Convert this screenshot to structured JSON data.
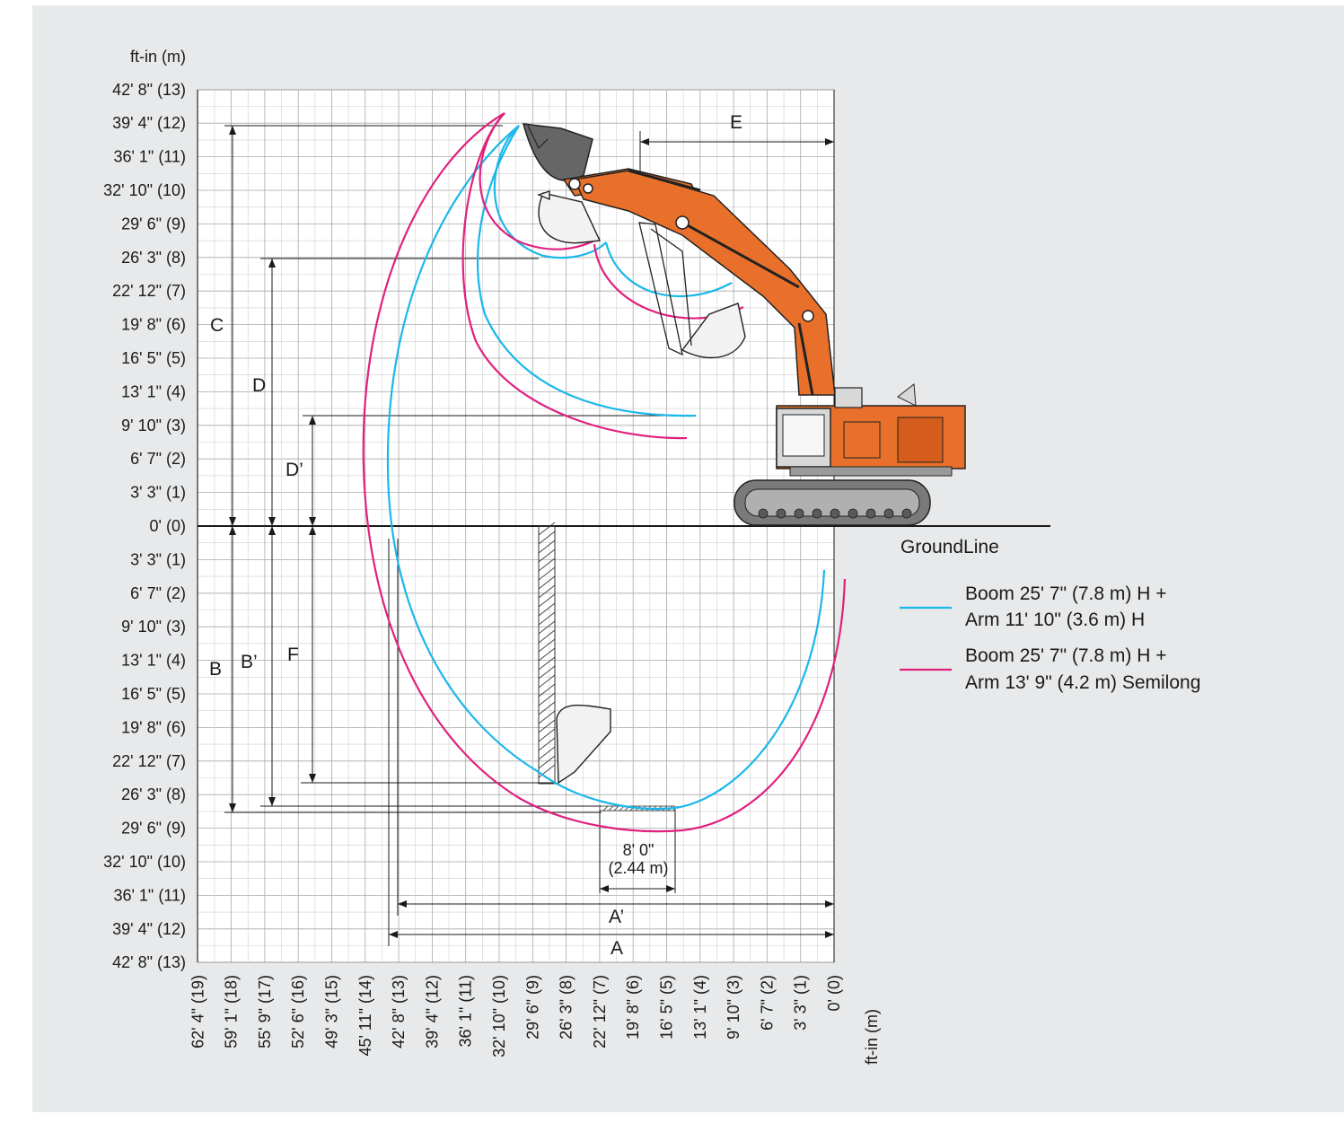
{
  "axes": {
    "y_unit_label": "ft-in (m)",
    "x_unit_label": "ft-in (m)",
    "y_ticks": [
      {
        "m": 13,
        "label": "42' 8\" (13)"
      },
      {
        "m": 12,
        "label": "39' 4\" (12)"
      },
      {
        "m": 11,
        "label": "36' 1\" (11)"
      },
      {
        "m": 10,
        "label": "32' 10\" (10)"
      },
      {
        "m": 9,
        "label": "29' 6\" (9)"
      },
      {
        "m": 8,
        "label": "26' 3\" (8)"
      },
      {
        "m": 7,
        "label": "22' 12\" (7)"
      },
      {
        "m": 6,
        "label": "19' 8\" (6)"
      },
      {
        "m": 5,
        "label": "16' 5\" (5)"
      },
      {
        "m": 4,
        "label": "13' 1\" (4)"
      },
      {
        "m": 3,
        "label": "9' 10\" (3)"
      },
      {
        "m": 2,
        "label": "6' 7\" (2)"
      },
      {
        "m": 1,
        "label": "3' 3\" (1)"
      },
      {
        "m": 0,
        "label": "0' (0)"
      },
      {
        "m": -1,
        "label": "3' 3\" (1)"
      },
      {
        "m": -2,
        "label": "6' 7\" (2)"
      },
      {
        "m": -3,
        "label": "9' 10\" (3)"
      },
      {
        "m": -4,
        "label": "13' 1\" (4)"
      },
      {
        "m": -5,
        "label": "16' 5\" (5)"
      },
      {
        "m": -6,
        "label": "19' 8\" (6)"
      },
      {
        "m": -7,
        "label": "22' 12\" (7)"
      },
      {
        "m": -8,
        "label": "26' 3\" (8)"
      },
      {
        "m": -9,
        "label": "29' 6\" (9)"
      },
      {
        "m": -10,
        "label": "32' 10\" (10)"
      },
      {
        "m": -11,
        "label": "36' 1\" (11)"
      },
      {
        "m": -12,
        "label": "39' 4\" (12)"
      },
      {
        "m": -13,
        "label": "42' 8\" (13)"
      }
    ],
    "x_ticks": [
      {
        "m": 19,
        "label": "62' 4\" (19)"
      },
      {
        "m": 18,
        "label": "59' 1\" (18)"
      },
      {
        "m": 17,
        "label": "55' 9\" (17)"
      },
      {
        "m": 16,
        "label": "52' 6\" (16)"
      },
      {
        "m": 15,
        "label": "49' 3\" (15)"
      },
      {
        "m": 14,
        "label": "45' 11\" (14)"
      },
      {
        "m": 13,
        "label": "42' 8\" (13)"
      },
      {
        "m": 12,
        "label": "39' 4\" (12)"
      },
      {
        "m": 11,
        "label": "36' 1\" (11)"
      },
      {
        "m": 10,
        "label": "32' 10\" (10)"
      },
      {
        "m": 9,
        "label": "29' 6\" (9)"
      },
      {
        "m": 8,
        "label": "26' 3\" (8)"
      },
      {
        "m": 7,
        "label": "22' 12\" (7)"
      },
      {
        "m": 6,
        "label": "19' 8\" (6)"
      },
      {
        "m": 5,
        "label": "16' 5\" (5)"
      },
      {
        "m": 4,
        "label": "13' 1\" (4)"
      },
      {
        "m": 3,
        "label": "9' 10\" (3)"
      },
      {
        "m": 2,
        "label": "6' 7\" (2)"
      },
      {
        "m": 1,
        "label": "3' 3\" (1)"
      },
      {
        "m": 0,
        "label": "0' (0)"
      }
    ]
  },
  "dimensions": {
    "A": "A",
    "A_prime": "A’",
    "B": "B",
    "B_prime": "B’",
    "C": "C",
    "D": "D",
    "D_prime": "D’",
    "E": "E",
    "F": "F",
    "width_ft": "8' 0\"",
    "width_m": "(2.44 m)"
  },
  "ground_label": "GroundLine",
  "legend": [
    {
      "color": "#1ab7ea",
      "line1": "Boom 25' 7\" (7.8 m) H +",
      "line2": "Arm 11' 10\" (3.6 m) H"
    },
    {
      "color": "#e0207e",
      "line1": "Boom 25' 7\" (7.8 m) H +",
      "line2": "Arm 13' 9\" (4.2 m) Semilong"
    }
  ],
  "colors": {
    "cyan": "#1ab7ea",
    "magenta": "#e0207e",
    "excavator_orange": "#e8702a",
    "grid": "#a8a8a8"
  }
}
